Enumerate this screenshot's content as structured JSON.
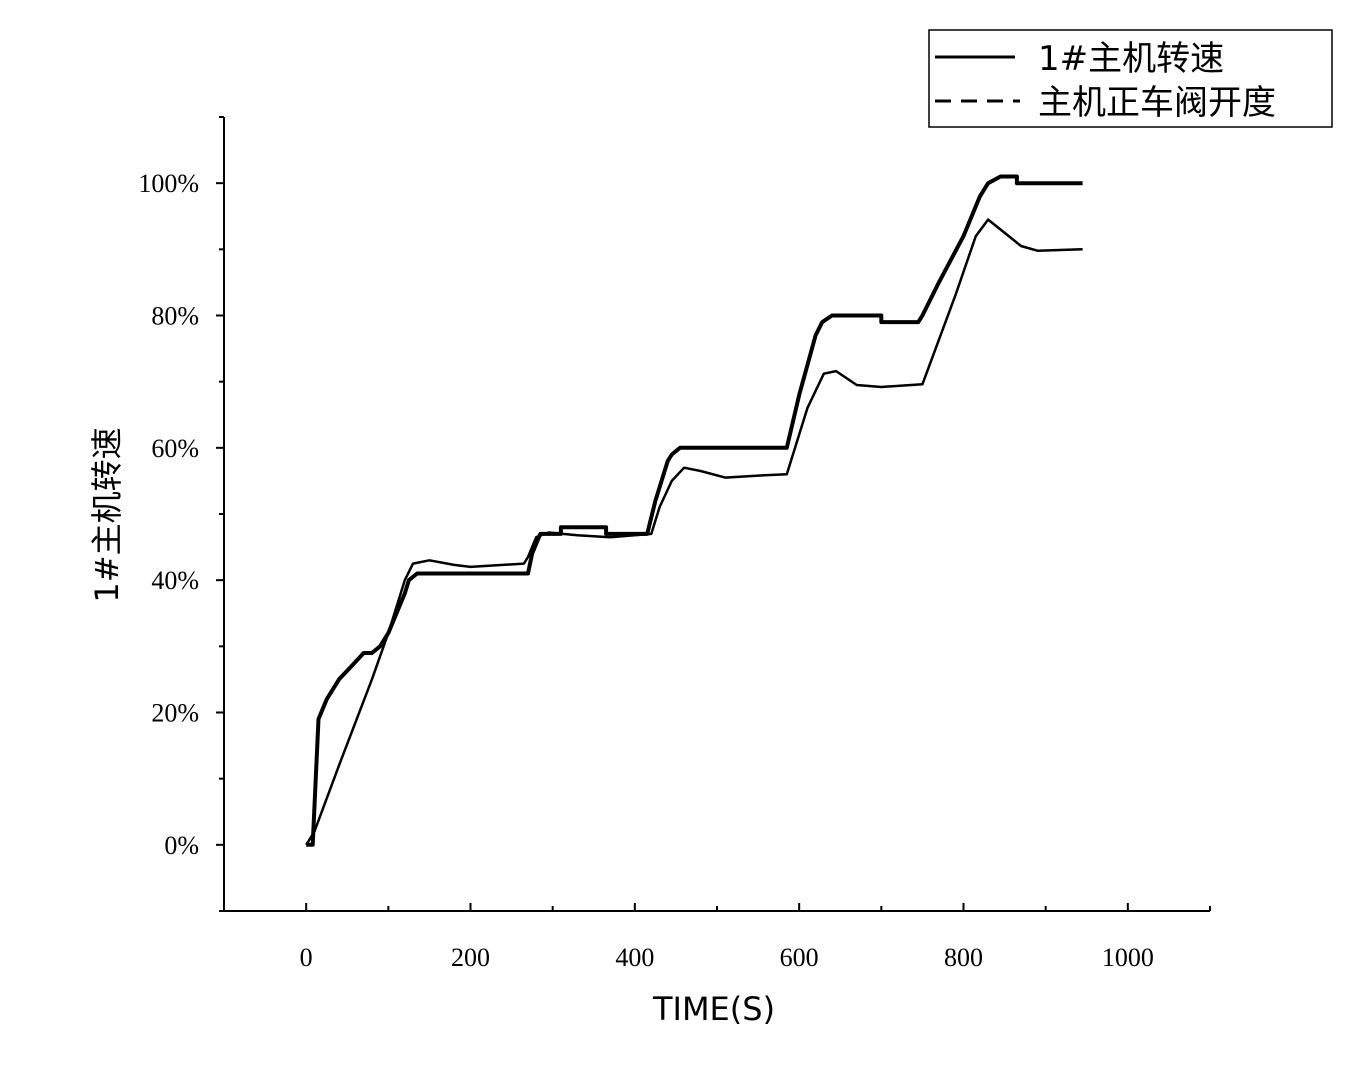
{
  "chart_data": {
    "type": "line",
    "title": "",
    "xlabel": "TIME(S)",
    "ylabel": "1#主机转速",
    "xlim": [
      -100,
      1100
    ],
    "ylim": [
      -10,
      110
    ],
    "x_ticks": [
      0,
      200,
      400,
      600,
      800,
      1000
    ],
    "x_tick_labels": [
      "0",
      "200",
      "400",
      "600",
      "800",
      "1000"
    ],
    "y_ticks": [
      0,
      20,
      40,
      60,
      80,
      100
    ],
    "y_tick_labels": [
      "0%",
      "20%",
      "40%",
      "60%",
      "80%",
      "100%"
    ],
    "grid": false,
    "legend_position": "top-right",
    "line_color": "#000000",
    "series": [
      {
        "name": "1#主机转速",
        "style": "solid",
        "x": [
          0,
          10,
          40,
          80,
          100,
          120,
          130,
          150,
          180,
          200,
          265,
          270,
          280,
          295,
          330,
          370,
          420,
          430,
          445,
          460,
          480,
          510,
          550,
          585,
          610,
          630,
          645,
          670,
          700,
          750,
          790,
          815,
          830,
          845,
          870,
          890,
          945
        ],
        "y": [
          0,
          2,
          12,
          25,
          32,
          40,
          42.5,
          43,
          42.3,
          42,
          42.5,
          43.5,
          46.5,
          47.2,
          46.8,
          46.5,
          47,
          51,
          55,
          57,
          56.5,
          55.5,
          55.8,
          56,
          66,
          71.2,
          71.6,
          69.5,
          69.2,
          69.6,
          83,
          92,
          94.5,
          93,
          90.5,
          89.8,
          90
        ]
      },
      {
        "name": "主机正车阀开度",
        "style": "dashed",
        "x": [
          0,
          8,
          15,
          25,
          40,
          55,
          70,
          80,
          90,
          100,
          110,
          120,
          125,
          135,
          270,
          275,
          285,
          310,
          310,
          365,
          365,
          415,
          425,
          440,
          445,
          455,
          585,
          600,
          620,
          628,
          640,
          700,
          700,
          745,
          750,
          770,
          800,
          820,
          830,
          845,
          865,
          865,
          945
        ],
        "y": [
          0,
          0,
          19,
          22,
          25,
          27,
          29,
          29,
          30,
          32,
          35,
          38,
          40,
          41,
          41,
          44,
          47,
          47,
          48,
          48,
          47,
          47,
          52,
          58,
          59,
          60,
          60,
          68,
          77,
          79,
          80,
          80,
          79,
          79,
          80,
          85,
          92,
          98,
          100,
          101,
          101,
          100,
          100
        ]
      }
    ]
  }
}
